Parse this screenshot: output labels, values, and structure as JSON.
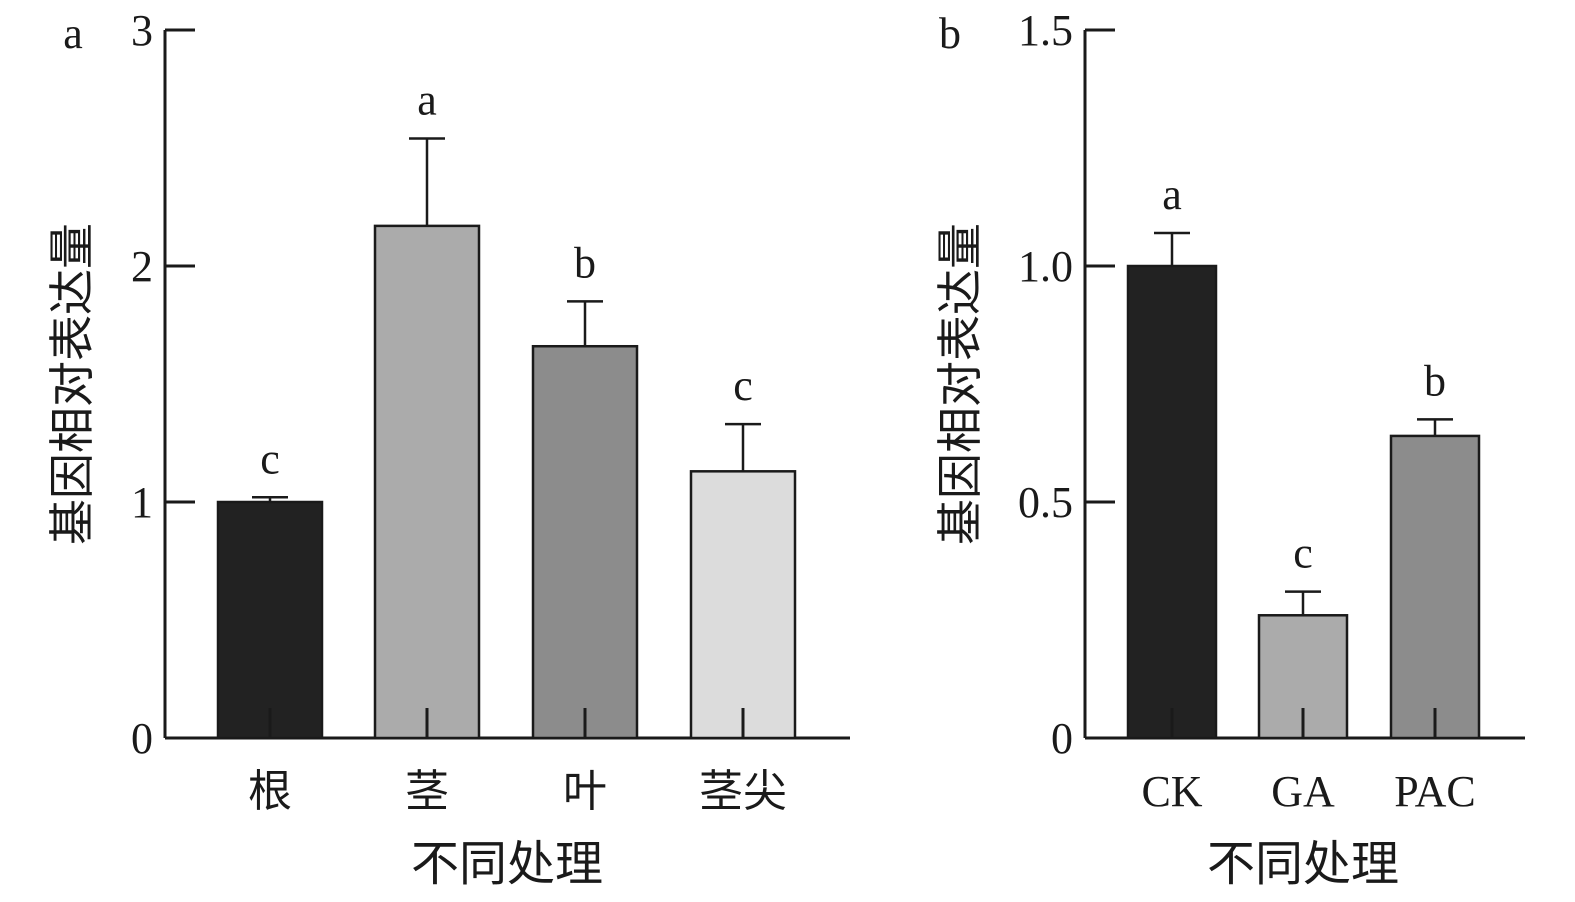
{
  "chart_data": [
    {
      "type": "bar",
      "panel_label": "a",
      "categories": [
        "根",
        "茎",
        "叶",
        "茎尖"
      ],
      "values": [
        1.0,
        2.17,
        1.66,
        1.13
      ],
      "errors": [
        0.02,
        0.37,
        0.19,
        0.2
      ],
      "significance": [
        "c",
        "a",
        "b",
        "c"
      ],
      "colors": [
        "#222222",
        "#ababab",
        "#8c8c8c",
        "#dcdcdc"
      ],
      "ylim": [
        0,
        3
      ],
      "yticks": [
        "0",
        "1",
        "2",
        "3"
      ],
      "ytick_values": [
        0,
        1,
        2,
        3
      ],
      "xlabel": "不同处理",
      "ylabel": "基因相对表达量",
      "legend": "none",
      "grid": false
    },
    {
      "type": "bar",
      "panel_label": "b",
      "categories": [
        "CK",
        "GA",
        "PAC"
      ],
      "values": [
        1.0,
        0.26,
        0.64
      ],
      "errors": [
        0.07,
        0.05,
        0.035
      ],
      "significance": [
        "a",
        "c",
        "b"
      ],
      "colors": [
        "#222222",
        "#ababab",
        "#8c8c8c"
      ],
      "ylim": [
        0,
        1.5
      ],
      "yticks": [
        "0",
        "0.5",
        "1.0",
        "1.5"
      ],
      "ytick_values": [
        0,
        0.5,
        1.0,
        1.5
      ],
      "xlabel": "不同处理",
      "ylabel": "基因相对表达量",
      "legend": "none",
      "grid": false
    }
  ]
}
